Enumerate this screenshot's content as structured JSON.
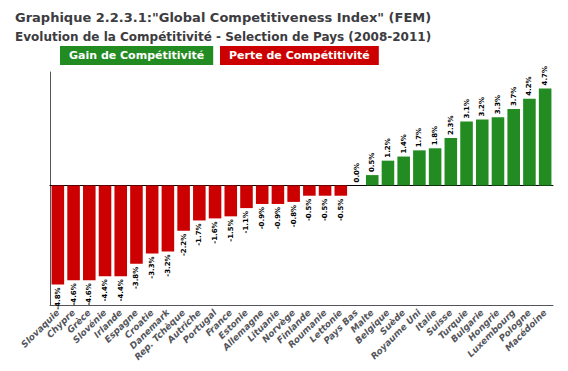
{
  "chart_data": {
    "type": "bar",
    "title": "Graphique 2.2.3.1:\"Global Competitiveness Index\" (FEM)",
    "subtitle": "Evolution de la Compétitivité - Selection de Pays (2008-2011)",
    "categories": [
      "Slovaquie",
      "Chypre",
      "Grèce",
      "Slovénie",
      "Irlande",
      "Espagne",
      "Croatie",
      "Danemark",
      "Rep. Tchèque",
      "Autriche",
      "Portugal",
      "France",
      "Estonie",
      "Allemagne",
      "Lituanie",
      "Norvège",
      "Finlande",
      "Roumanie",
      "Lettonie",
      "Pays Bas",
      "Malte",
      "Belgique",
      "Suède",
      "Royaume Uni",
      "Italie",
      "Suisse",
      "Turquie",
      "Bulgarie",
      "Hongrie",
      "Luxembourg",
      "Pologne",
      "Macédoine"
    ],
    "values": [
      -4.8,
      -4.6,
      -4.6,
      -4.4,
      -4.4,
      -3.8,
      -3.3,
      -3.2,
      -2.2,
      -1.7,
      -1.6,
      -1.5,
      -1.1,
      -0.9,
      -0.9,
      -0.8,
      -0.5,
      -0.5,
      -0.5,
      0.0,
      0.5,
      1.2,
      1.4,
      1.7,
      1.8,
      2.3,
      3.1,
      3.2,
      3.3,
      3.7,
      4.2,
      4.7
    ],
    "value_labels": [
      "-4.8%",
      "-4.6%",
      "-4.6%",
      "-4.4%",
      "-4.4%",
      "-3.8%",
      "-3.3%",
      "-3.2%",
      "-2.2%",
      "-1.7%",
      "-1.6%",
      "-1.5%",
      "-1.1%",
      "-0.9%",
      "-0.9%",
      "-0.8%",
      "-0.5%",
      "-0.5%",
      "-0.5%",
      "0.0%",
      "0.5%",
      "1.2%",
      "1.4%",
      "1.7%",
      "1.8%",
      "2.3%",
      "3.1%",
      "3.2%",
      "3.3%",
      "3.7%",
      "4.2%",
      "4.7%"
    ],
    "colors": [
      "#CC0000",
      "#CC0000",
      "#CC0000",
      "#CC0000",
      "#CC0000",
      "#CC0000",
      "#CC0000",
      "#CC0000",
      "#CC0000",
      "#CC0000",
      "#CC0000",
      "#CC0000",
      "#CC0000",
      "#CC0000",
      "#CC0000",
      "#CC0000",
      "#CC0000",
      "#CC0000",
      "#CC0000",
      "#228B22",
      "#228B22",
      "#228B22",
      "#228B22",
      "#228B22",
      "#228B22",
      "#228B22",
      "#228B22",
      "#228B22",
      "#228B22",
      "#228B22",
      "#228B22",
      "#228B22"
    ],
    "ylim": [
      -5.8,
      5.5
    ],
    "yticks": [],
    "tick_labels": "x",
    "data_labels": true,
    "grid": false,
    "annotations": [
      {
        "text": "Gain de Compétitivité",
        "color": "#228B22"
      },
      {
        "text": "Perte de Compétitivité",
        "color": "#CC0000"
      }
    ]
  }
}
